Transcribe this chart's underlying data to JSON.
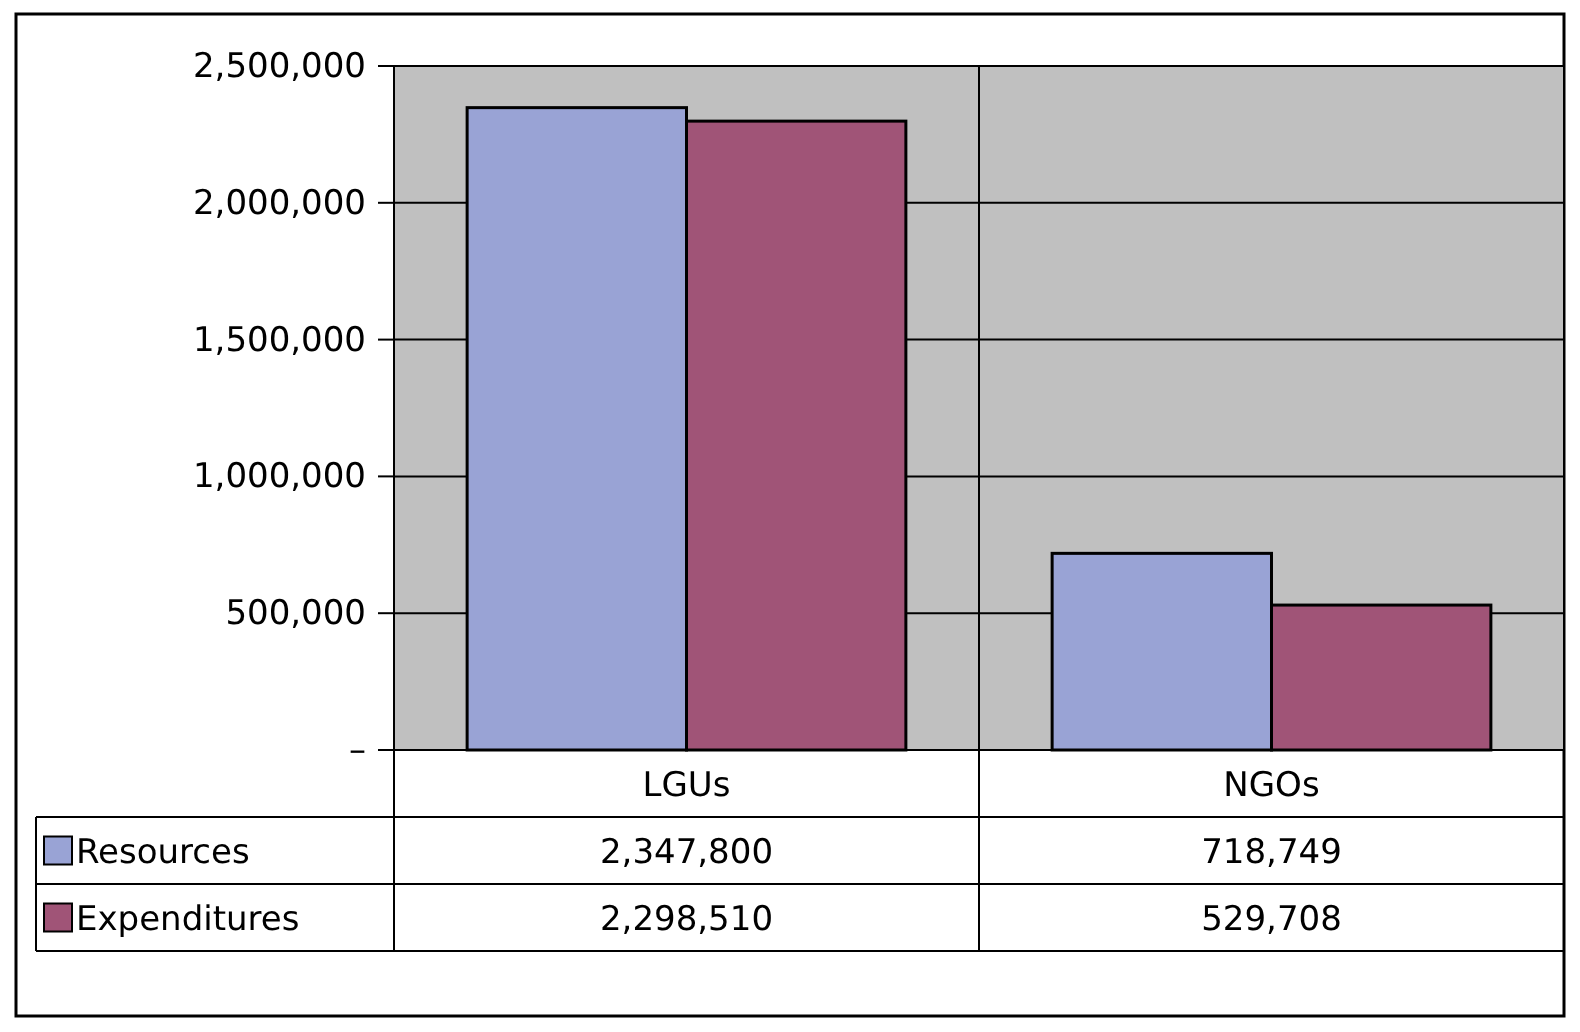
{
  "chart_data": {
    "type": "bar",
    "categories": [
      "LGUs",
      "NGOs"
    ],
    "series": [
      {
        "name": "Resources",
        "color": "#99a3d5",
        "values": [
          2347800,
          718749
        ],
        "value_labels": [
          "2,347,800",
          "718,749"
        ]
      },
      {
        "name": "Expenditures",
        "color": "#a05477",
        "values": [
          2298510,
          529708
        ],
        "value_labels": [
          "2,298,510",
          "529,708"
        ]
      }
    ],
    "ylim": [
      0,
      2500000
    ],
    "yticks": [
      {
        "value": 0,
        "label": "–"
      },
      {
        "value": 500000,
        "label": "500,000"
      },
      {
        "value": 1000000,
        "label": "1,000,000"
      },
      {
        "value": 1500000,
        "label": "1,500,000"
      },
      {
        "value": 2000000,
        "label": "2,000,000"
      },
      {
        "value": 2500000,
        "label": "2,500,000"
      }
    ],
    "grid": true,
    "legend": "bottom"
  }
}
